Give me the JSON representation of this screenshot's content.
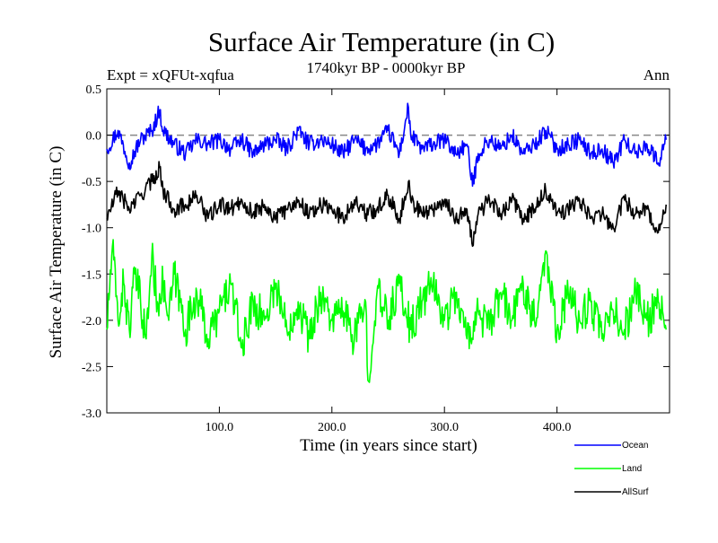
{
  "colors": {
    "ocean": "#0000ff",
    "land": "#00ff00",
    "allsurf": "#000000",
    "zero_line": "#888888"
  },
  "chart_data": {
    "type": "line",
    "title": "Surface Air Temperature (in C)",
    "subtitle": "1740kyr BP - 0000kyr BP",
    "expt_label": "Expt = xQFUt-xqfua",
    "season_label": "Ann",
    "xlabel": "Time (in years since start)",
    "ylabel": "Surface Air Temperature (in C)",
    "xlim": [
      0,
      500
    ],
    "ylim": [
      -3.0,
      0.5
    ],
    "x_ticks": [
      100,
      200,
      300,
      400
    ],
    "x_tick_labels": [
      "100.0",
      "200.0",
      "300.0",
      "400.0"
    ],
    "y_ticks": [
      0.5,
      0.0,
      -0.5,
      -1.0,
      -1.5,
      -2.0,
      -2.5,
      -3.0
    ],
    "y_tick_labels": [
      "0.5",
      "0.0",
      "-0.5",
      "-1.0",
      "-1.5",
      "-2.0",
      "-2.5",
      "-3.0"
    ],
    "reference_line": 0.0,
    "legend_position": "bottom-right",
    "series": [
      {
        "name": "Ocean",
        "color_key": "ocean",
        "x": [
          0,
          10,
          20,
          30,
          40,
          47,
          50,
          60,
          70,
          80,
          90,
          100,
          110,
          120,
          130,
          140,
          150,
          160,
          170,
          180,
          190,
          200,
          210,
          220,
          230,
          240,
          250,
          260,
          268,
          270,
          280,
          290,
          300,
          310,
          320,
          325,
          330,
          340,
          350,
          360,
          370,
          380,
          390,
          400,
          410,
          420,
          430,
          440,
          450,
          460,
          470,
          480,
          490,
          497
        ],
        "y": [
          -0.15,
          0.05,
          -0.3,
          -0.05,
          0.05,
          0.27,
          0.05,
          -0.1,
          -0.2,
          -0.05,
          -0.1,
          -0.05,
          -0.15,
          -0.05,
          -0.2,
          -0.1,
          -0.05,
          -0.15,
          0.05,
          -0.1,
          -0.05,
          -0.1,
          -0.2,
          -0.05,
          -0.15,
          -0.1,
          0.05,
          -0.2,
          0.3,
          0.0,
          -0.15,
          -0.1,
          -0.05,
          -0.2,
          -0.1,
          -0.55,
          -0.2,
          -0.05,
          -0.15,
          0.0,
          -0.2,
          -0.1,
          0.05,
          -0.15,
          -0.1,
          -0.05,
          -0.2,
          -0.15,
          -0.3,
          -0.05,
          -0.2,
          -0.1,
          -0.3,
          -0.05
        ]
      },
      {
        "name": "Land",
        "color_key": "land",
        "x": [
          0,
          5,
          10,
          15,
          20,
          25,
          30,
          35,
          40,
          45,
          50,
          55,
          60,
          70,
          80,
          90,
          100,
          110,
          120,
          130,
          140,
          150,
          160,
          170,
          180,
          190,
          200,
          210,
          220,
          230,
          232,
          240,
          250,
          260,
          270,
          280,
          290,
          300,
          310,
          320,
          330,
          340,
          350,
          360,
          370,
          380,
          390,
          400,
          410,
          420,
          430,
          440,
          450,
          460,
          470,
          480,
          490,
          497
        ],
        "y": [
          -2.1,
          -1.2,
          -2.0,
          -1.6,
          -2.1,
          -1.5,
          -1.8,
          -2.2,
          -1.3,
          -1.8,
          -1.6,
          -2.0,
          -1.5,
          -2.1,
          -1.7,
          -2.2,
          -1.9,
          -1.6,
          -2.3,
          -1.8,
          -2.0,
          -1.6,
          -2.1,
          -1.8,
          -2.2,
          -1.7,
          -2.0,
          -1.9,
          -2.2,
          -1.8,
          -2.65,
          -1.7,
          -2.0,
          -1.6,
          -2.1,
          -1.8,
          -1.6,
          -2.0,
          -1.7,
          -2.2,
          -1.9,
          -2.1,
          -1.7,
          -2.0,
          -1.6,
          -2.0,
          -1.25,
          -2.1,
          -1.7,
          -2.0,
          -1.8,
          -2.2,
          -1.9,
          -2.1,
          -1.7,
          -2.0,
          -1.8,
          -2.1
        ]
      },
      {
        "name": "AllSurf",
        "color_key": "allsurf",
        "x": [
          0,
          10,
          20,
          30,
          40,
          47,
          50,
          60,
          70,
          80,
          90,
          100,
          110,
          120,
          130,
          140,
          150,
          160,
          170,
          180,
          190,
          200,
          210,
          220,
          230,
          240,
          250,
          260,
          268,
          270,
          280,
          290,
          300,
          310,
          320,
          325,
          330,
          340,
          350,
          360,
          370,
          380,
          390,
          400,
          410,
          420,
          430,
          440,
          450,
          460,
          470,
          480,
          490,
          497
        ],
        "y": [
          -0.9,
          -0.6,
          -0.8,
          -0.65,
          -0.5,
          -0.35,
          -0.6,
          -0.8,
          -0.75,
          -0.65,
          -0.9,
          -0.75,
          -0.8,
          -0.7,
          -0.85,
          -0.75,
          -0.9,
          -0.8,
          -0.7,
          -0.85,
          -0.75,
          -0.8,
          -0.9,
          -0.7,
          -0.85,
          -0.8,
          -0.65,
          -0.9,
          -0.5,
          -0.7,
          -0.85,
          -0.8,
          -0.7,
          -0.9,
          -0.8,
          -1.2,
          -0.85,
          -0.7,
          -0.85,
          -0.7,
          -0.9,
          -0.8,
          -0.6,
          -0.85,
          -0.8,
          -0.7,
          -0.9,
          -0.85,
          -1.0,
          -0.7,
          -0.85,
          -0.8,
          -1.05,
          -0.75
        ]
      }
    ]
  }
}
